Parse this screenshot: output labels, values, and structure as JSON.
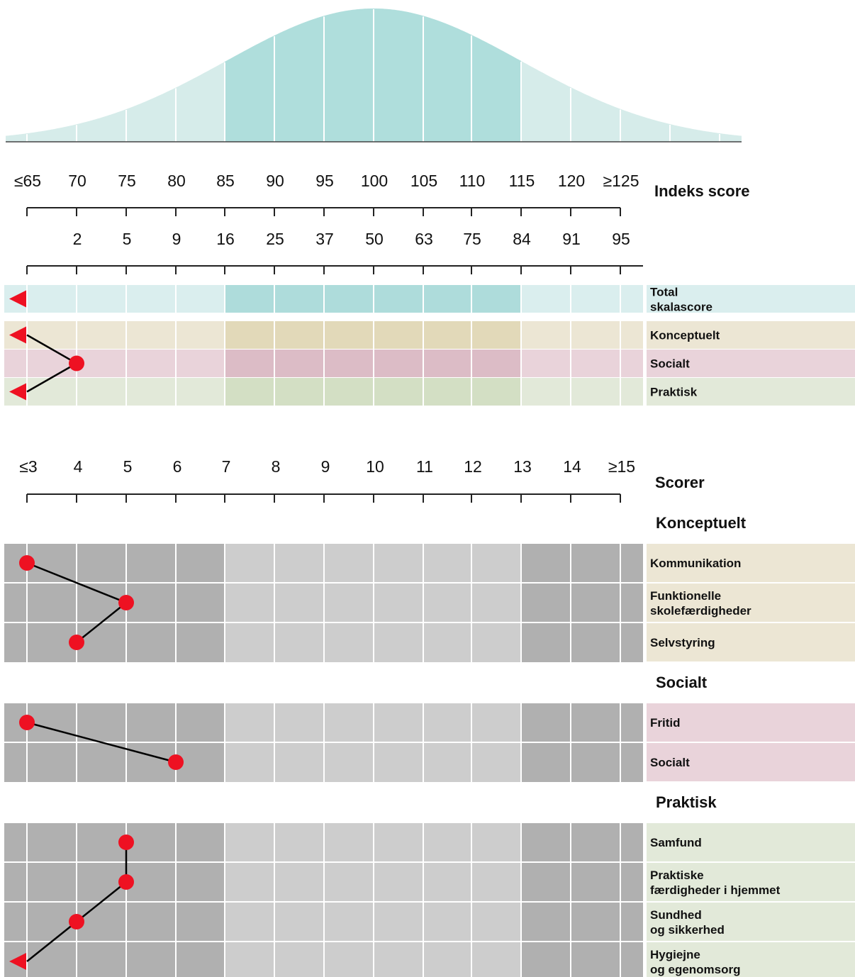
{
  "chart_data": {
    "type": "line",
    "index_axis": {
      "title": "Indeks score",
      "ticks": [
        "≤65",
        "70",
        "75",
        "80",
        "85",
        "90",
        "95",
        "100",
        "105",
        "110",
        "115",
        "120",
        "≥125"
      ],
      "percentiles": [
        "",
        "2",
        "5",
        "9",
        "16",
        "25",
        "37",
        "50",
        "63",
        "75",
        "84",
        "91",
        "95"
      ]
    },
    "index_rows": [
      {
        "label_lines": [
          "Total",
          "skalascore"
        ],
        "key": "total",
        "value": "≤65",
        "marker": "triangle"
      },
      {
        "label_lines": [
          "Konceptuelt"
        ],
        "key": "konceptuelt",
        "value": "≤65",
        "marker": "triangle"
      },
      {
        "label_lines": [
          "Socialt"
        ],
        "key": "socialt",
        "value": "70",
        "marker": "circle"
      },
      {
        "label_lines": [
          "Praktisk"
        ],
        "key": "praktisk",
        "value": "≤65",
        "marker": "triangle"
      }
    ],
    "scaled_axis": {
      "title": "Scorer",
      "ticks": [
        "≤3",
        "4",
        "5",
        "6",
        "7",
        "8",
        "9",
        "10",
        "11",
        "12",
        "13",
        "14",
        "≥15"
      ]
    },
    "scaled_groups": [
      {
        "title": "Konceptuelt",
        "key": "konceptuelt",
        "rows": [
          {
            "label_lines": [
              "Kommunikation"
            ],
            "value": "≤3",
            "marker": "circle"
          },
          {
            "label_lines": [
              "Funktionelle",
              "skolefærdigheder"
            ],
            "value": "5",
            "marker": "circle"
          },
          {
            "label_lines": [
              "Selvstyring"
            ],
            "value": "4",
            "marker": "circle"
          }
        ]
      },
      {
        "title": "Socialt",
        "key": "socialt",
        "rows": [
          {
            "label_lines": [
              "Fritid"
            ],
            "value": "≤3",
            "marker": "circle"
          },
          {
            "label_lines": [
              "Socialt"
            ],
            "value": "6",
            "marker": "circle"
          }
        ]
      },
      {
        "title": "Praktisk",
        "key": "praktisk",
        "rows": [
          {
            "label_lines": [
              "Samfund"
            ],
            "value": "5",
            "marker": "circle"
          },
          {
            "label_lines": [
              "Praktiske",
              "færdigheder i hjemmet"
            ],
            "value": "5",
            "marker": "circle"
          },
          {
            "label_lines": [
              "Sundhed",
              "og sikkerhed"
            ],
            "value": "4",
            "marker": "circle"
          },
          {
            "label_lines": [
              "Hygiejne",
              "og egenomsorg"
            ],
            "value": "≤3",
            "marker": "triangle"
          }
        ]
      }
    ],
    "colors": {
      "curve_light": "#d6ecea",
      "curve_dark": "#afdedc",
      "total_light": "#daeeee",
      "total_dark": "#aedcdb",
      "konceptuelt_light": "#ece6d4",
      "konceptuelt_dark": "#e2d9b9",
      "socialt_light": "#e9d3da",
      "socialt_dark": "#dcbcc6",
      "praktisk_light": "#e2e9d9",
      "praktisk_dark": "#d3dfc4",
      "grid_dark": "#b0b0b0",
      "grid_light": "#cdcdcd",
      "marker": "#ee1122"
    }
  }
}
